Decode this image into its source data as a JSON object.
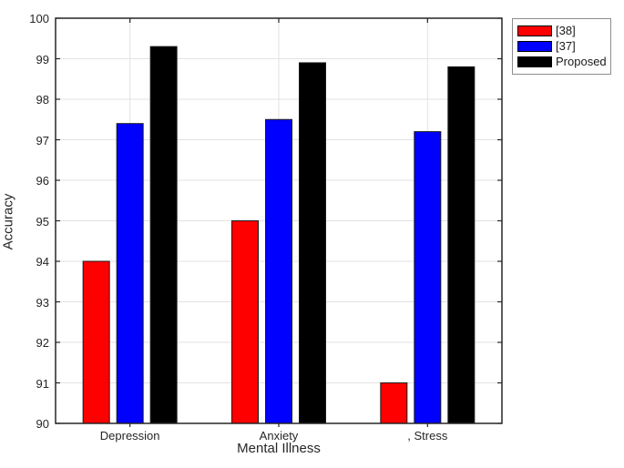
{
  "chart_data": {
    "type": "bar",
    "title": "",
    "xlabel": "Mental Illness",
    "ylabel": "Accuracy",
    "categories": [
      "Depression",
      "Anxiety",
      ", Stress"
    ],
    "series": [
      {
        "name": "[38]",
        "color": "#ff0000",
        "values": [
          94,
          95,
          91
        ]
      },
      {
        "name": "[37]",
        "color": "#0000ff",
        "values": [
          97.4,
          97.5,
          97.2
        ]
      },
      {
        "name": "Proposed",
        "color": "#000000",
        "values": [
          99.3,
          98.9,
          98.8
        ]
      }
    ],
    "ylim": [
      90,
      100
    ],
    "yticks": [
      90,
      91,
      92,
      93,
      94,
      95,
      96,
      97,
      98,
      99,
      100
    ],
    "grid": true,
    "x_gridlines_at_categories": true,
    "legend_position": "top-right-outside",
    "legend_entries": [
      "[38]",
      "[37]",
      "Proposed"
    ]
  },
  "colors": {
    "bar_red": "#ff0000",
    "bar_blue": "#0000ff",
    "bar_black": "#000000",
    "bar_edge": "#1a1a1a",
    "axis_box": "#262626",
    "gridline": "#e2e2e2",
    "text": "#262626",
    "legend_border": "#8c8c8c",
    "background": "#ffffff"
  }
}
